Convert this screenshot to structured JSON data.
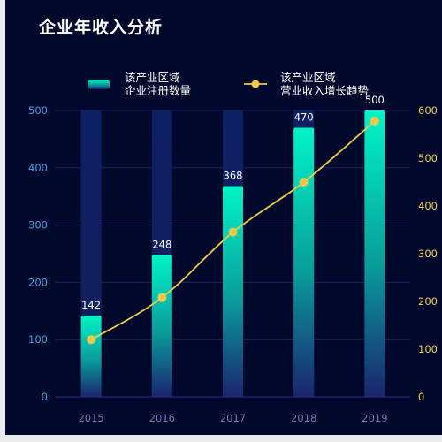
{
  "title": "企业年收入分析",
  "colors": {
    "background": "#00082b",
    "bar_top": "#00f5c8",
    "bar_bottom": "#1a2470",
    "bar_track": "#0f1f66",
    "line": "#f2c94c",
    "left_axis_text": "#3e9fe3",
    "right_axis_text": "#f2c94c",
    "x_axis_text": "#6f79b8",
    "gridline": "#1b2566"
  },
  "chart_data": {
    "type": "bar",
    "categories": [
      "2015",
      "2016",
      "2017",
      "2018",
      "2019"
    ],
    "series": [
      {
        "name": "该产业区域\n企业注册数量",
        "type": "bar",
        "axis": "left",
        "values": [
          142,
          248,
          368,
          470,
          500
        ],
        "data_labels": [
          "142",
          "248",
          "368",
          "470",
          "500"
        ],
        "max_background": 500
      },
      {
        "name": "该产业区域\n营业收入增长趋势",
        "type": "line",
        "axis": "right",
        "smooth": true,
        "values": [
          120,
          208,
          345,
          450,
          578
        ]
      }
    ],
    "left_axis": {
      "min": 0,
      "max": 500,
      "ticks": [
        "0",
        "100",
        "200",
        "300",
        "400",
        "500"
      ]
    },
    "right_axis": {
      "min": 0,
      "max": 600,
      "ticks": [
        "0",
        "100",
        "200",
        "300",
        "400",
        "500",
        "600"
      ]
    },
    "xlabel": "",
    "ylabel": "",
    "grid": true,
    "legend_position": "top"
  }
}
